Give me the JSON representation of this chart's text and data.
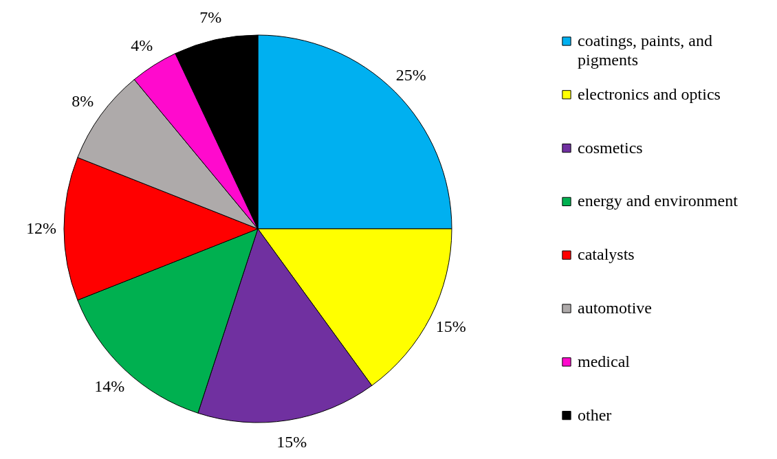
{
  "chart_data": {
    "type": "pie",
    "categories": [
      "coatings, paints, and pigments",
      "electronics and optics",
      "cosmetics",
      "energy and environment",
      "catalysts",
      "automotive",
      "medical",
      "other"
    ],
    "values": [
      25,
      15,
      15,
      14,
      12,
      8,
      4,
      7
    ],
    "value_labels": [
      "25%",
      "15%",
      "15%",
      "14%",
      "12%",
      "8%",
      "4%",
      "7%"
    ],
    "colors": [
      "#00b0f0",
      "#ffff00",
      "#7030a0",
      "#00b050",
      "#ff0000",
      "#aeaaaa",
      "#ff0acd",
      "#000000"
    ],
    "legend": "right"
  }
}
